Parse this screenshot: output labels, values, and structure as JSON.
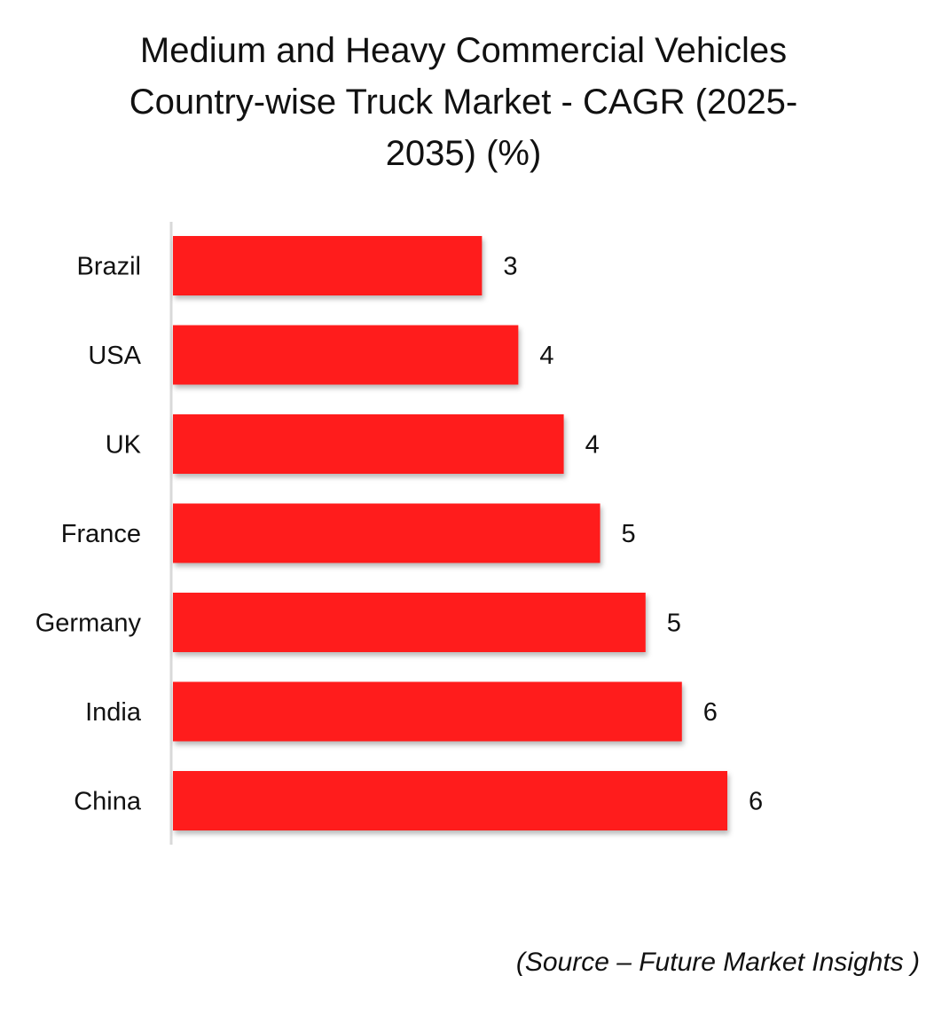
{
  "chart_data": {
    "type": "bar",
    "orientation": "horizontal",
    "title": "Medium and Heavy Commercial Vehicles Country-wise Truck Market - CAGR (2025-2035) (%)",
    "title_lines": [
      "Medium and Heavy Commercial Vehicles",
      "Country-wise Truck Market - CAGR (2025-",
      "2035) (%)"
    ],
    "categories": [
      "Brazil",
      "USA",
      "UK",
      "France",
      "Germany",
      "India",
      "China"
    ],
    "values": [
      3.4,
      3.8,
      4.3,
      4.7,
      5.2,
      5.6,
      6.1
    ],
    "value_labels": [
      "3",
      "4",
      "4",
      "5",
      "5",
      "6",
      "6"
    ],
    "xlabel": "",
    "ylabel": "",
    "xlim": [
      0,
      6.1
    ],
    "grid": false,
    "legend": "none",
    "bar_color": "#ff1a1a",
    "axis_color": "#d9d9d9"
  },
  "source": "(Source – Future Market Insights )"
}
